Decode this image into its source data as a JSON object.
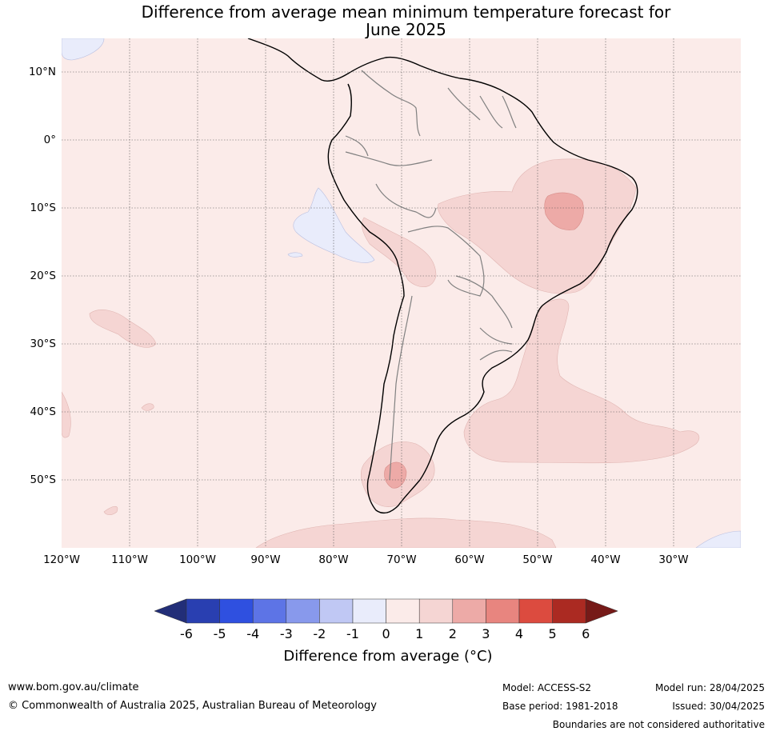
{
  "title": {
    "line1": "Difference from average mean minimum temperature forecast for",
    "line2": "June 2025"
  },
  "map": {
    "lat_labels": [
      "10°N",
      "0°",
      "10°S",
      "20°S",
      "30°S",
      "40°S",
      "50°S"
    ],
    "lon_labels": [
      "120°W",
      "110°W",
      "100°W",
      "90°W",
      "80°W",
      "70°W",
      "60°W",
      "50°W",
      "40°W",
      "30°W"
    ],
    "colors": {
      "ocean_base": "#fbebe9",
      "band_1_2": "#f5d5d3",
      "band_2_3": "#edaaa7",
      "band_m1_0": "#e9ecfb",
      "coast": "#000000",
      "borders": "#808080",
      "grid": "#555555"
    }
  },
  "colorbar": {
    "ticks": [
      "-6",
      "-5",
      "-4",
      "-3",
      "-2",
      "-1",
      "0",
      "1",
      "2",
      "3",
      "4",
      "5",
      "6"
    ],
    "colors": [
      "#222e78",
      "#293fb1",
      "#2f50e0",
      "#5d74e6",
      "#8899ec",
      "#c0c8f4",
      "#e9ecfb",
      "#fbebe9",
      "#f5d5d3",
      "#edaaa7",
      "#e8857f",
      "#dc4b3f",
      "#ab2a22",
      "#761a18"
    ],
    "label": "Difference from average (°C)"
  },
  "footer": {
    "website": "www.bom.gov.au/climate",
    "copyright": "© Commonwealth of Australia 2025, Australian Bureau of Meteorology",
    "model": "Model: ACCESS-S2",
    "base_period": "Base period: 1981-2018",
    "model_run": "Model run: 28/04/2025",
    "issued": "Issued: 30/04/2025",
    "disclaimer": "Boundaries are not considered authoritative"
  }
}
